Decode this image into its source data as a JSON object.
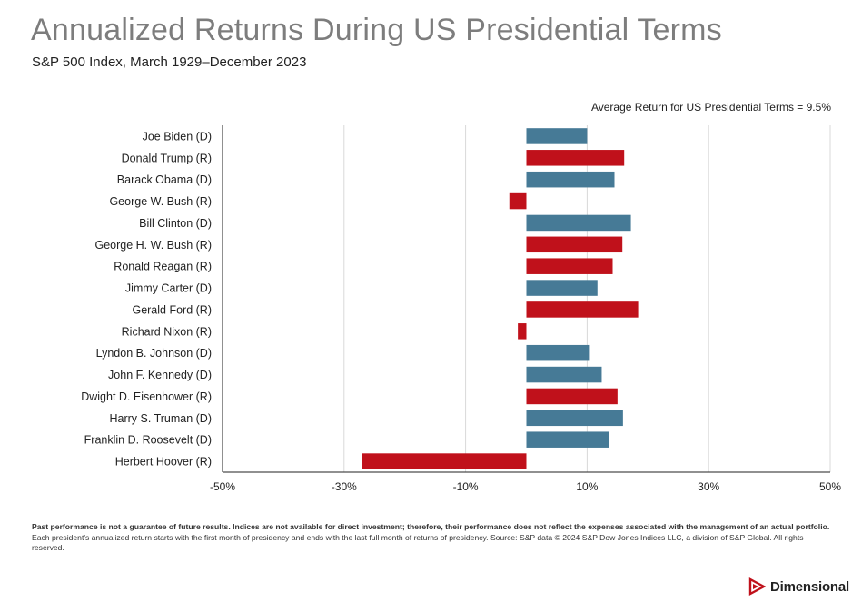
{
  "header": {
    "title": "Annualized Returns During US Presidential Terms",
    "subtitle": "S&P 500 Index, March 1929–December 2023",
    "average_note": "Average Return for US Presidential Terms = 9.5%"
  },
  "colors": {
    "democrat": "#467a96",
    "republican": "#c0111b",
    "grid": "#d9d9d9",
    "axis": "#222222",
    "logo": "#c0111b"
  },
  "chart_data": {
    "type": "bar",
    "orientation": "horizontal",
    "xlim": [
      -50,
      50
    ],
    "x_ticks": [
      -50,
      -30,
      -10,
      10,
      30,
      50
    ],
    "x_tick_labels": [
      "-50%",
      "-30%",
      "-10%",
      "10%",
      "30%",
      "50%"
    ],
    "grid": true,
    "categories": [
      "Joe Biden (D)",
      "Donald Trump (R)",
      "Barack Obama (D)",
      "George W. Bush (R)",
      "Bill Clinton (D)",
      "George H. W. Bush (R)",
      "Ronald Reagan (R)",
      "Jimmy Carter (D)",
      "Gerald Ford (R)",
      "Richard Nixon (R)",
      "Lyndon B. Johnson (D)",
      "John F. Kennedy (D)",
      "Dwight D. Eisenhower (R)",
      "Harry S. Truman (D)",
      "Franklin D. Roosevelt (D)",
      "Herbert Hoover (R)"
    ],
    "values": [
      10.0,
      16.1,
      14.5,
      -2.8,
      17.2,
      15.8,
      14.2,
      11.7,
      18.4,
      -1.4,
      10.3,
      12.4,
      15.0,
      15.9,
      13.6,
      -27.0
    ],
    "party": [
      "D",
      "R",
      "D",
      "R",
      "D",
      "R",
      "R",
      "D",
      "R",
      "R",
      "D",
      "D",
      "R",
      "D",
      "D",
      "R"
    ]
  },
  "footnote": {
    "bold": "Past performance is not a guarantee of future results. Indices are not available for direct investment; therefore, their performance does not reflect the expenses associated with the management of an actual portfolio.",
    "regular": " Each president's annualized return starts with the first month of presidency and ends with the last full month of returns of presidency. Source: S&P data © 2024 S&P Dow Jones Indices LLC, a division of S&P Global. All rights reserved."
  },
  "logo": {
    "text": "Dimensional",
    "icon": "dimensional-logo-icon"
  }
}
